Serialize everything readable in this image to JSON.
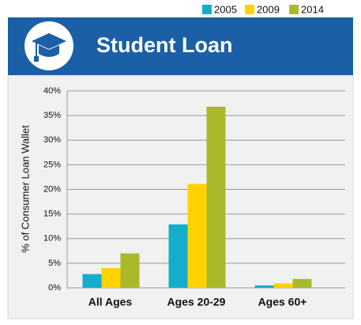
{
  "chart_data": {
    "type": "bar",
    "title": "Student Loan",
    "y_label": "% of Consumer Loan Wallet",
    "categories": [
      "All Ages",
      "Ages 20-29",
      "Ages 60+"
    ],
    "series": [
      {
        "name": "2005",
        "color": "#13aecb",
        "values": [
          2.8,
          12.9,
          0.5
        ]
      },
      {
        "name": "2009",
        "color": "#ffd200",
        "values": [
          4.0,
          21.1,
          0.9
        ]
      },
      {
        "name": "2014",
        "color": "#a9b92a",
        "values": [
          7.0,
          36.8,
          1.8
        ]
      }
    ],
    "ylim": [
      0,
      40
    ],
    "yticks": [
      {
        "value": 0,
        "label": "0%"
      },
      {
        "value": 5,
        "label": "5%"
      },
      {
        "value": 10,
        "label": "10%"
      },
      {
        "value": 15,
        "label": "15%"
      },
      {
        "value": 20,
        "label": "20%"
      },
      {
        "value": 25,
        "label": "25%"
      },
      {
        "value": 30,
        "label": "30%"
      },
      {
        "value": 35,
        "label": "35%"
      },
      {
        "value": 40,
        "label": "40%"
      }
    ],
    "grid": true
  }
}
